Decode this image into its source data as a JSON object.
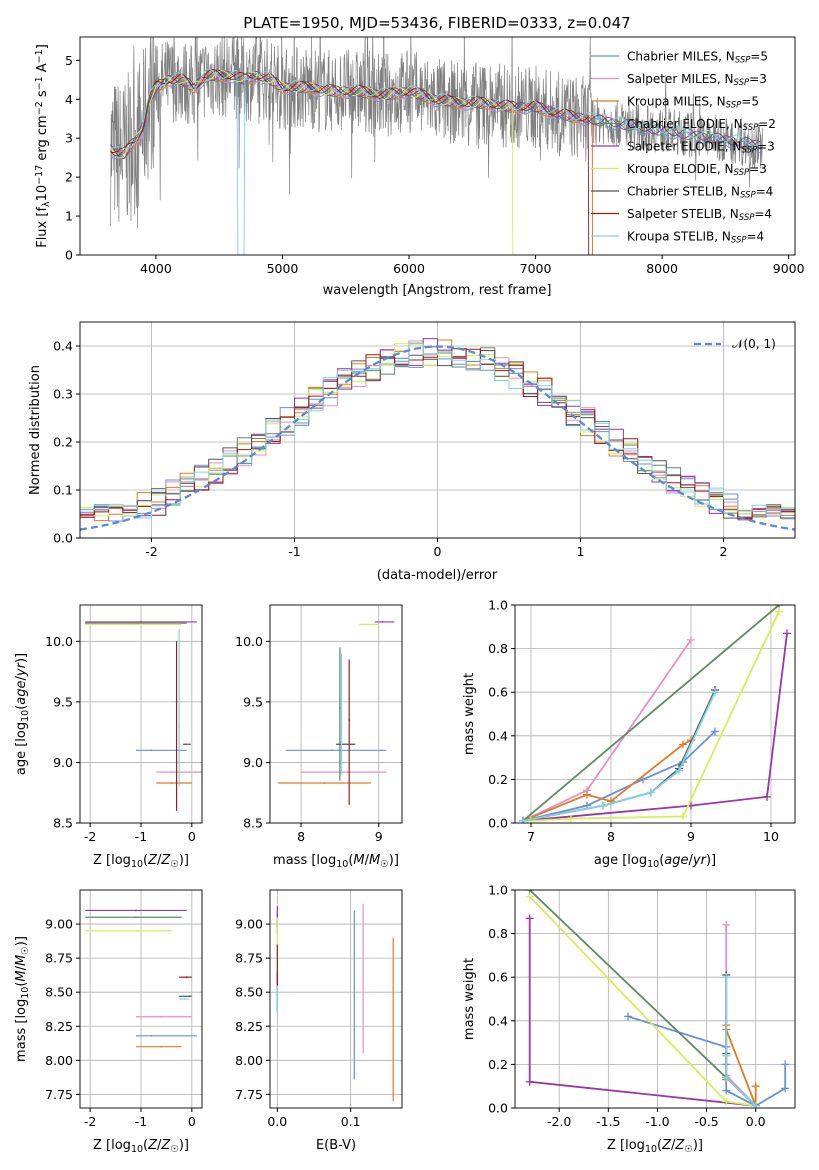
{
  "title": "PLATE=1950, MJD=53436, FIBERID=0333, z=0.047",
  "colors": {
    "Chabrier MILES": "#6a8fdf",
    "Salpeter MILES": "#e88fbe",
    "Kroupa MILES": "#e07b28",
    "Chabrier ELODIE": "#5f8a63",
    "Salpeter ELODIE": "#9a36a8",
    "Kroupa ELODIE": "#d4ef5a",
    "Chabrier STELIB": "#555555",
    "Salpeter STELIB": "#9a1c1c",
    "Kroupa STELIB": "#80d3e0",
    "data": "#808080",
    "normal": "#5b8ad6"
  },
  "chart_data": [
    {
      "id": "spectrum",
      "type": "line",
      "title": "PLATE=1950, MJD=53436, FIBERID=0333, z=0.047",
      "xlabel": "wavelength [Angstrom, rest frame]",
      "ylabel": "Flux [f_λ10⁻¹⁷ erg cm⁻² s⁻¹ A⁻¹]",
      "xlim": [
        3400,
        9050
      ],
      "ylim": [
        0,
        5.6
      ],
      "xticks": [
        4000,
        5000,
        6000,
        7000,
        8000,
        9000
      ],
      "yticks": [
        0,
        1,
        2,
        3,
        4,
        5
      ],
      "legend_position": "right",
      "legend": [
        {
          "label": "Chabrier MILES",
          "nssp": "5"
        },
        {
          "label": "Salpeter MILES",
          "nssp": "3"
        },
        {
          "label": "Kroupa MILES",
          "nssp": "5"
        },
        {
          "label": "Chabrier ELODIE",
          "nssp": "2"
        },
        {
          "label": "Salpeter ELODIE",
          "nssp": "3"
        },
        {
          "label": "Kroupa ELODIE",
          "nssp": "3"
        },
        {
          "label": "Chabrier STELIB",
          "nssp": "4"
        },
        {
          "label": "Salpeter STELIB",
          "nssp": "4"
        },
        {
          "label": "Kroupa STELIB",
          "nssp": "4"
        }
      ],
      "continuum": {
        "x": [
          3650,
          3700,
          3750,
          3800,
          3850,
          3900,
          3950,
          4000,
          4100,
          4200,
          4300,
          4400,
          4500,
          4600,
          4700,
          4800,
          4900,
          5000,
          5200,
          5400,
          5600,
          5800,
          6000,
          6200,
          6400,
          6600,
          6800,
          7000,
          7200,
          7400,
          7600,
          7800,
          8000,
          8200,
          8400,
          8600,
          8800
        ],
        "y": [
          2.7,
          2.6,
          2.6,
          2.8,
          3.0,
          3.3,
          4.0,
          4.3,
          4.5,
          4.5,
          4.3,
          4.6,
          4.6,
          4.6,
          4.5,
          4.6,
          4.5,
          4.3,
          4.3,
          4.2,
          4.2,
          4.1,
          4.2,
          4.0,
          3.9,
          3.9,
          3.8,
          3.8,
          3.6,
          3.5,
          3.4,
          3.3,
          3.2,
          3.1,
          3.0,
          2.9,
          2.8
        ]
      }
    },
    {
      "id": "residuals",
      "type": "line",
      "xlabel": "(data-model)/error",
      "ylabel": "Normed distribution",
      "xlim": [
        -2.5,
        2.5
      ],
      "ylim": [
        0,
        0.45
      ],
      "xticks": [
        -2,
        -1,
        0,
        1,
        2
      ],
      "yticks": [
        0.0,
        0.1,
        0.2,
        0.3,
        0.4
      ],
      "legend_position": "top-right",
      "legend_label": "𝒩(0, 1)",
      "hist_bins": 50
    },
    {
      "id": "age-vs-Z",
      "type": "scatter",
      "xlabel": "Z [log10(Z/Z☉)]",
      "ylabel": "age  [log10(age/yr)]",
      "xlim": [
        -2.2,
        0.2
      ],
      "ylim": [
        8.5,
        10.3
      ],
      "xticks": [
        -2,
        -1,
        0
      ],
      "yticks": [
        8.5,
        9.0,
        9.5,
        10.0
      ],
      "errorbars": [
        {
          "model": "Chabrier MILES",
          "x": -0.8,
          "xerr": [
            0.3,
            0.7
          ],
          "y": 9.1
        },
        {
          "model": "Salpeter MILES",
          "x": -0.4,
          "xerr": [
            0.3,
            0.6
          ],
          "y": 8.92
        },
        {
          "model": "Kroupa MILES",
          "x": -0.4,
          "xerr": [
            0.3,
            0.4
          ],
          "y": 8.83
        },
        {
          "model": "Chabrier ELODIE",
          "x": -1.0,
          "xerr": [
            1.1,
            0.9
          ],
          "y": 10.15
        },
        {
          "model": "Salpeter ELODIE",
          "x": -1.0,
          "xerr": [
            1.1,
            1.1
          ],
          "y": 10.16
        },
        {
          "model": "Kroupa ELODIE",
          "x": -1.1,
          "xerr": [
            1.0,
            0.9
          ],
          "y": 10.14
        },
        {
          "model": "Chabrier STELIB",
          "x": -0.12,
          "xerr": [
            0.05,
            0.1
          ],
          "y": 9.15
        },
        {
          "model": "Salpeter STELIB",
          "x": -0.3,
          "y": 9.5,
          "yerr": [
            0.9,
            0.5
          ]
        },
        {
          "model": "Kroupa STELIB",
          "x": -0.25,
          "y": 9.3,
          "yerr": [
            0.5,
            0.8
          ]
        }
      ]
    },
    {
      "id": "age-vs-mass",
      "type": "scatter",
      "xlabel": "mass [log10(M/M☉)]",
      "xlim": [
        7.6,
        9.3
      ],
      "ylim": [
        8.5,
        10.3
      ],
      "xticks": [
        8,
        9
      ],
      "yticks": [
        8.5,
        9.0,
        9.5,
        10.0
      ],
      "errorbars": [
        {
          "model": "Chabrier MILES",
          "x": 8.4,
          "xerr": [
            0.6,
            0.7
          ],
          "y": 9.1
        },
        {
          "model": "Salpeter MILES",
          "x": 8.6,
          "xerr": [
            0.6,
            0.5
          ],
          "y": 8.92
        },
        {
          "model": "Kroupa MILES",
          "x": 8.3,
          "xerr": [
            0.6,
            0.6
          ],
          "y": 8.83
        },
        {
          "model": "Chabrier ELODIE",
          "x": 8.5,
          "y": 9.45,
          "yerr": [
            0.6,
            0.5
          ]
        },
        {
          "model": "Salpeter ELODIE",
          "x": 9.05,
          "xerr": [
            0.1,
            0.15
          ],
          "y": 10.16
        },
        {
          "model": "Kroupa ELODIE",
          "x": 8.95,
          "xerr": [
            0.2,
            0.05
          ],
          "y": 10.14
        },
        {
          "model": "Chabrier STELIB",
          "x": 8.5,
          "xerr": [
            0.05,
            0.2
          ],
          "y": 9.15
        },
        {
          "model": "Salpeter STELIB",
          "x": 8.62,
          "y": 9.35,
          "yerr": [
            0.7,
            0.5
          ]
        },
        {
          "model": "Kroupa STELIB",
          "x": 8.52,
          "y": 9.3,
          "yerr": [
            0.4,
            0.6
          ]
        }
      ]
    },
    {
      "id": "weight-vs-age",
      "type": "line",
      "xlabel": "age  [log10(age/yr)]",
      "ylabel": "mass weight",
      "xlim": [
        6.8,
        10.3
      ],
      "ylim": [
        0,
        1
      ],
      "xticks": [
        7,
        8,
        9,
        10
      ],
      "yticks": [
        0.0,
        0.2,
        0.4,
        0.6,
        0.8,
        1.0
      ],
      "series": [
        {
          "model": "Chabrier MILES",
          "x": [
            6.9,
            7.7,
            8.4,
            8.9,
            9.3
          ],
          "y": [
            0.01,
            0.08,
            0.2,
            0.28,
            0.42
          ]
        },
        {
          "model": "Salpeter MILES",
          "x": [
            6.9,
            7.7,
            9.0
          ],
          "y": [
            0.01,
            0.15,
            0.84
          ]
        },
        {
          "model": "Kroupa MILES",
          "x": [
            6.9,
            7.7,
            8.0,
            8.9,
            9.0
          ],
          "y": [
            0.01,
            0.13,
            0.1,
            0.36,
            0.38
          ]
        },
        {
          "model": "Chabrier ELODIE",
          "x": [
            6.9,
            10.1
          ],
          "y": [
            0.01,
            1.0
          ]
        },
        {
          "model": "Salpeter ELODIE",
          "x": [
            6.9,
            9.0,
            9.95,
            10.2
          ],
          "y": [
            0.01,
            0.08,
            0.12,
            0.87
          ]
        },
        {
          "model": "Kroupa ELODIE",
          "x": [
            7.0,
            7.5,
            8.9,
            10.1
          ],
          "y": [
            0.01,
            0.02,
            0.03,
            0.97
          ]
        },
        {
          "model": "Chabrier STELIB",
          "x": [
            6.9,
            7.9,
            8.5,
            8.85,
            9.3
          ],
          "y": [
            0.01,
            0.08,
            0.14,
            0.25,
            0.61
          ]
        },
        {
          "model": "Kroupa STELIB",
          "x": [
            6.9,
            7.9,
            8.5,
            8.85,
            9.3
          ],
          "y": [
            0.01,
            0.08,
            0.14,
            0.24,
            0.6
          ]
        }
      ]
    },
    {
      "id": "mass-vs-Z",
      "type": "scatter",
      "xlabel": "Z [log10(Z/Z☉)]",
      "ylabel": "mass [log10(M/M☉)]",
      "xlim": [
        -2.2,
        0.2
      ],
      "ylim": [
        7.65,
        9.25
      ],
      "xticks": [
        -2,
        -1,
        0
      ],
      "yticks": [
        7.75,
        8.0,
        8.25,
        8.5,
        8.75,
        9.0
      ],
      "errorbars": [
        {
          "model": "Chabrier MILES",
          "x": -0.8,
          "xerr": [
            0.3,
            0.9
          ],
          "y": 8.18
        },
        {
          "model": "Salpeter MILES",
          "x": -0.6,
          "xerr": [
            0.5,
            0.6
          ],
          "y": 8.32
        },
        {
          "model": "Kroupa MILES",
          "x": -0.6,
          "xerr": [
            0.5,
            0.4
          ],
          "y": 8.1
        },
        {
          "model": "Chabrier ELODIE",
          "x": -1.1,
          "xerr": [
            1.0,
            0.9
          ],
          "y": 9.05
        },
        {
          "model": "Salpeter ELODIE",
          "x": -1.1,
          "xerr": [
            1.0,
            1.0
          ],
          "y": 9.1
        },
        {
          "model": "Kroupa ELODIE",
          "x": -1.2,
          "xerr": [
            0.9,
            0.8
          ],
          "y": 8.95
        },
        {
          "model": "Chabrier STELIB",
          "x": -0.05,
          "xerr": [
            0.2,
            0.05
          ],
          "y": 8.47
        },
        {
          "model": "Salpeter STELIB",
          "x": -0.1,
          "xerr": [
            0.15,
            0.1
          ],
          "y": 8.61
        },
        {
          "model": "Kroupa STELIB",
          "x": -0.15,
          "xerr": [
            0.1,
            0.1
          ],
          "y": 8.45
        }
      ]
    },
    {
      "id": "mass-vs-EBV",
      "type": "scatter",
      "xlabel": "E(B-V)",
      "xlim": [
        -0.01,
        0.17
      ],
      "ylim": [
        7.65,
        9.25
      ],
      "xticks": [
        0.0,
        0.1
      ],
      "yticks": [
        7.75,
        8.0,
        8.25,
        8.5,
        8.75,
        9.0
      ],
      "errorbars": [
        {
          "model": "Chabrier MILES",
          "x": 0.105,
          "y": 8.48,
          "yerr": [
            0.62,
            0.62
          ]
        },
        {
          "model": "Salpeter MILES",
          "x": 0.117,
          "y": 8.6,
          "yerr": [
            0.55,
            0.55
          ]
        },
        {
          "model": "Kroupa MILES",
          "x": 0.158,
          "y": 8.3,
          "yerr": [
            0.6,
            0.6
          ]
        },
        {
          "model": "Chabrier ELODIE",
          "x": 0.0,
          "y": 9.0,
          "yerr": [
            0.08,
            0.08
          ]
        },
        {
          "model": "Salpeter ELODIE",
          "x": 0.0,
          "y": 9.05,
          "yerr": [
            0.08,
            0.08
          ]
        },
        {
          "model": "Kroupa ELODIE",
          "x": 0.0,
          "y": 8.95,
          "yerr": [
            0.1,
            0.1
          ]
        },
        {
          "model": "Chabrier STELIB",
          "x": 0.0,
          "y": 8.5,
          "yerr": [
            0.15,
            0.15
          ]
        },
        {
          "model": "Salpeter STELIB",
          "x": 0.0,
          "y": 8.7,
          "yerr": [
            0.15,
            0.15
          ]
        },
        {
          "model": "Kroupa STELIB",
          "x": 0.0,
          "y": 8.45,
          "yerr": [
            0.1,
            0.1
          ]
        }
      ]
    },
    {
      "id": "weight-vs-Z",
      "type": "line",
      "xlabel": "Z [log10(Z/Z☉)]",
      "ylabel": "mass weight",
      "xlim": [
        -2.45,
        0.4
      ],
      "ylim": [
        0,
        1
      ],
      "xticks": [
        -2.0,
        -1.5,
        -1.0,
        -0.5,
        0.0
      ],
      "yticks": [
        0.0,
        0.2,
        0.4,
        0.6,
        0.8,
        1.0
      ],
      "series": [
        {
          "model": "Chabrier MILES",
          "x": [
            -1.3,
            -0.3,
            -0.3,
            -0.3,
            0.0,
            0.3,
            0.3
          ],
          "y": [
            0.42,
            0.28,
            0.2,
            0.08,
            0.01,
            0.09,
            0.2
          ]
        },
        {
          "model": "Salpeter MILES",
          "x": [
            -0.3,
            -0.3,
            0.0
          ],
          "y": [
            0.84,
            0.15,
            0.01
          ]
        },
        {
          "model": "Kroupa MILES",
          "x": [
            -0.3,
            -0.3,
            -0.3,
            0.0,
            0.0
          ],
          "y": [
            0.38,
            0.13,
            0.36,
            0.01,
            0.1
          ]
        },
        {
          "model": "Chabrier ELODIE",
          "x": [
            -2.3,
            0.0
          ],
          "y": [
            1.0,
            0.01
          ]
        },
        {
          "model": "Salpeter ELODIE",
          "x": [
            -2.3,
            -2.3,
            0.0
          ],
          "y": [
            0.87,
            0.12,
            0.01
          ]
        },
        {
          "model": "Kroupa ELODIE",
          "x": [
            -2.3,
            -0.3,
            0.0
          ],
          "y": [
            0.97,
            0.03,
            0.01
          ]
        },
        {
          "model": "Chabrier STELIB",
          "x": [
            -0.3,
            -0.3,
            -0.3,
            0.0
          ],
          "y": [
            0.61,
            0.25,
            0.14,
            0.01
          ]
        },
        {
          "model": "Kroupa STELIB",
          "x": [
            -0.3,
            -0.3,
            -0.3,
            0.0
          ],
          "y": [
            0.6,
            0.24,
            0.14,
            0.01
          ]
        }
      ]
    }
  ]
}
